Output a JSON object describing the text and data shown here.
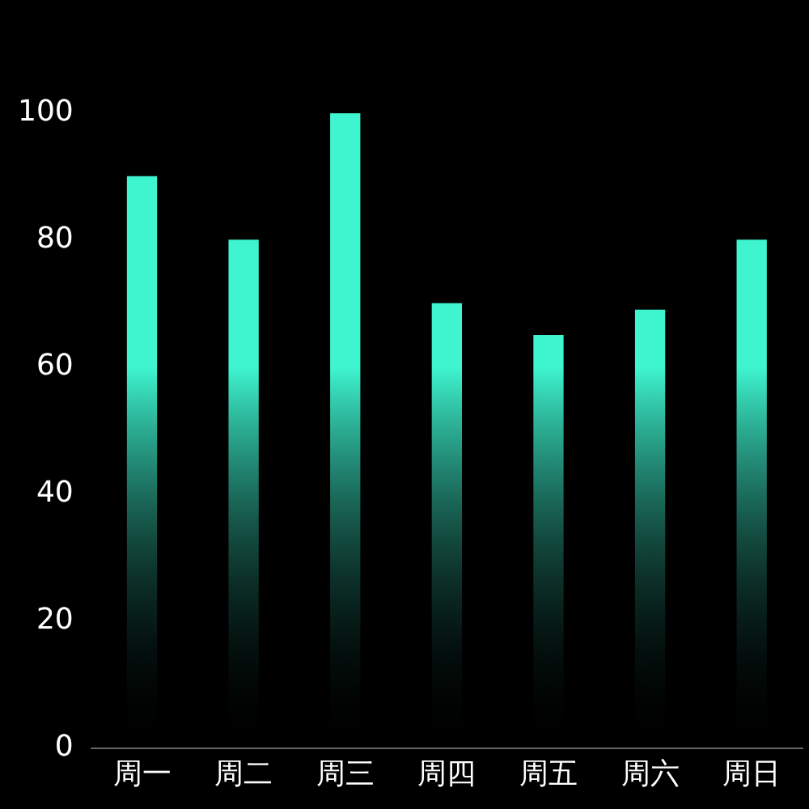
{
  "chart_data": {
    "type": "bar",
    "categories": [
      "周一",
      "周二",
      "周三",
      "周四",
      "周五",
      "周六",
      "周日"
    ],
    "values": [
      90,
      80,
      100,
      70,
      65,
      69,
      80
    ],
    "color": "#3ef5d0",
    "ylim": [
      0,
      100
    ],
    "yticks": [
      0,
      20,
      40,
      60,
      80,
      100
    ]
  }
}
